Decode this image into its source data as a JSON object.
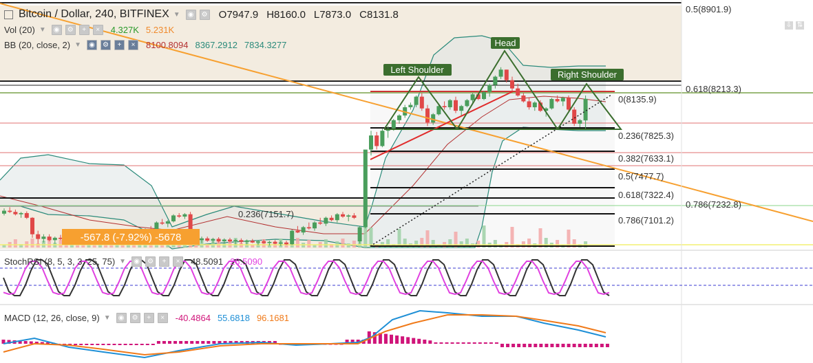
{
  "header": {
    "symbol": "Bitcoin / Dollar, 240, BITFINEX",
    "open": "O7947.9",
    "high": "H8160.0",
    "low": "L7873.0",
    "close": "C8131.8"
  },
  "indicators": {
    "vol": {
      "label": "Vol (20)",
      "v1": "4.327K",
      "v2": "5.231K",
      "c1": "#2b9a2b",
      "c2": "#f08a2c"
    },
    "bb": {
      "label": "BB (20, close, 2)",
      "v1": "8100.8094",
      "v2": "8367.2912",
      "v3": "7834.3277",
      "c1": "#b33030",
      "c2": "#2a8a7a",
      "c3": "#2a8a7a"
    },
    "stoch": {
      "label": "StochRSI (8, 5, 3, 3, 25, 75)",
      "v1": "48.5091",
      "v2": "26.5090",
      "c1": "#333333",
      "c2": "#e040e0"
    },
    "macd": {
      "label": "MACD (12, 26, close, 9)",
      "v1": "-40.4864",
      "v2": "55.6818",
      "v3": "96.1681",
      "c1": "#d0157a",
      "c2": "#1e8fd6",
      "c3": "#f07a1a"
    }
  },
  "annotations": {
    "left_shoulder": "Left Shoulder",
    "head": "Head",
    "right_shoulder": "Right Shoulder",
    "measure": "-567.8 (-7.92%) -5678"
  },
  "fib_labels": {
    "f1": "0.5(8901.9)",
    "f2": "0.618(8213.3)",
    "f3": "0(8135.9)",
    "f4": "0.236(7825.3)",
    "f5": "0.382(7633.1)",
    "f6": "0.5(7477.7)",
    "f7": "0.618(7322.4)",
    "f8": "0.786(7232.8)",
    "f9": "0.786(7101.2)",
    "f10": "0.236(7151.7)"
  },
  "colors": {
    "up": "#4a9e5c",
    "down": "#e04848",
    "trendline": "#f7a030",
    "pattern": "#3b6e2e"
  },
  "chart_data": {
    "type": "candlestick",
    "title": "Bitcoin / Dollar, 240, BITFINEX",
    "candles_ohlc": [
      [
        7155,
        7200,
        7140,
        7180
      ],
      [
        7180,
        7210,
        7160,
        7170
      ],
      [
        7170,
        7190,
        7140,
        7150
      ],
      [
        7150,
        7170,
        7120,
        7160
      ],
      [
        7160,
        7175,
        7110,
        7120
      ],
      [
        7120,
        7125,
        6950,
        6980
      ],
      [
        6980,
        7010,
        6900,
        6940
      ],
      [
        6940,
        6980,
        6910,
        6960
      ],
      [
        6960,
        6980,
        6920,
        6930
      ],
      [
        6930,
        6960,
        6900,
        6950
      ],
      [
        6950,
        6975,
        6930,
        6940
      ],
      [
        6940,
        6955,
        6910,
        6920
      ],
      [
        6920,
        6950,
        6905,
        6945
      ],
      [
        6945,
        6960,
        6920,
        6930
      ],
      [
        6930,
        6950,
        6910,
        6915
      ],
      [
        6915,
        6945,
        6900,
        6940
      ],
      [
        6940,
        6960,
        6925,
        6930
      ],
      [
        6930,
        6955,
        6915,
        6950
      ],
      [
        6950,
        6970,
        6935,
        6940
      ],
      [
        6940,
        6960,
        6920,
        6925
      ],
      [
        6925,
        6950,
        6910,
        6945
      ],
      [
        6945,
        6960,
        6925,
        6935
      ],
      [
        6935,
        6970,
        6930,
        6965
      ],
      [
        6965,
        6990,
        6950,
        6960
      ],
      [
        6960,
        6990,
        6945,
        6985
      ],
      [
        6985,
        7030,
        6975,
        7020
      ],
      [
        7020,
        7050,
        7000,
        7010
      ],
      [
        7010,
        7090,
        7000,
        7080
      ],
      [
        7080,
        7110,
        7060,
        7070
      ],
      [
        7070,
        7100,
        7040,
        7090
      ],
      [
        7090,
        7150,
        7080,
        7140
      ],
      [
        7140,
        7160,
        7120,
        7130
      ],
      [
        7130,
        7160,
        7110,
        7150
      ],
      [
        7150,
        7170,
        6990,
        7000
      ],
      [
        7000,
        7010,
        6900,
        6930
      ],
      [
        6930,
        6960,
        6905,
        6945
      ],
      [
        6945,
        6960,
        6915,
        6925
      ],
      [
        6925,
        6950,
        6905,
        6940
      ],
      [
        6940,
        6955,
        6910,
        6920
      ],
      [
        6920,
        6945,
        6900,
        6935
      ],
      [
        6935,
        6950,
        6910,
        6920
      ],
      [
        6920,
        6940,
        6895,
        6930
      ],
      [
        6930,
        6945,
        6900,
        6915
      ],
      [
        6915,
        6935,
        6895,
        6925
      ],
      [
        6925,
        6940,
        6905,
        6910
      ],
      [
        6910,
        6930,
        6890,
        6920
      ],
      [
        6920,
        6935,
        6900,
        6905
      ],
      [
        6905,
        6925,
        6885,
        6915
      ],
      [
        6915,
        6930,
        6895,
        6900
      ],
      [
        6900,
        6925,
        6880,
        6910
      ],
      [
        6910,
        6925,
        6890,
        6895
      ],
      [
        6895,
        7020,
        6890,
        7010
      ],
      [
        7010,
        7050,
        6990,
        6995
      ],
      [
        6995,
        7050,
        6975,
        7040
      ],
      [
        7040,
        7080,
        7020,
        7030
      ],
      [
        7030,
        7090,
        7010,
        7080
      ],
      [
        7080,
        7120,
        7060,
        7070
      ],
      [
        7070,
        7130,
        7050,
        7120
      ],
      [
        7120,
        7140,
        7090,
        7100
      ],
      [
        7100,
        7160,
        7080,
        7150
      ],
      [
        7150,
        7170,
        7120,
        7130
      ],
      [
        7130,
        7150,
        7090,
        7140
      ],
      [
        7140,
        7160,
        7110,
        7120
      ],
      [
        6920,
        7050,
        6900,
        7040
      ],
      [
        7040,
        7350,
        7030,
        7700
      ],
      [
        7700,
        7860,
        7650,
        7820
      ],
      [
        7820,
        7850,
        7700,
        7730
      ],
      [
        7730,
        7880,
        7720,
        7860
      ],
      [
        7860,
        7900,
        7800,
        7880
      ],
      [
        7880,
        7960,
        7860,
        7950
      ],
      [
        7950,
        8000,
        7920,
        7990
      ],
      [
        7990,
        8080,
        7970,
        8060
      ],
      [
        8060,
        8100,
        8040,
        8080
      ],
      [
        8080,
        8160,
        8060,
        8150
      ],
      [
        8150,
        8180,
        8030,
        8050
      ],
      [
        8050,
        8080,
        7900,
        7930
      ],
      [
        7930,
        8010,
        7910,
        8000
      ],
      [
        8000,
        8080,
        7990,
        8070
      ],
      [
        8070,
        8110,
        8040,
        8060
      ],
      [
        8060,
        8130,
        8040,
        8120
      ],
      [
        8120,
        8150,
        8010,
        8030
      ],
      [
        8030,
        8080,
        7990,
        8070
      ],
      [
        8070,
        8130,
        8060,
        8120
      ],
      [
        8120,
        8180,
        8100,
        8170
      ],
      [
        8170,
        8200,
        8120,
        8130
      ],
      [
        8130,
        8200,
        8120,
        8190
      ],
      [
        8190,
        8260,
        8150,
        8250
      ],
      [
        8250,
        8330,
        8220,
        8320
      ],
      [
        8320,
        8400,
        8300,
        8380
      ],
      [
        8380,
        8380,
        8270,
        8290
      ],
      [
        8290,
        8320,
        8200,
        8220
      ],
      [
        8220,
        8260,
        8150,
        8160
      ],
      [
        8160,
        8180,
        8100,
        8110
      ],
      [
        8110,
        8140,
        8040,
        8060
      ],
      [
        8060,
        8110,
        8030,
        8100
      ],
      [
        8100,
        8120,
        8020,
        8030
      ],
      [
        8030,
        8060,
        7980,
        8050
      ],
      [
        8050,
        8140,
        8040,
        8130
      ],
      [
        8130,
        8160,
        8100,
        8110
      ],
      [
        8110,
        8150,
        8070,
        8140
      ],
      [
        8140,
        8160,
        8030,
        8040
      ],
      [
        8040,
        8060,
        7900,
        7920
      ],
      [
        7920,
        7960,
        7890,
        7950
      ],
      [
        7947.9,
        8160,
        7873,
        8131.8
      ]
    ],
    "volume_note": "relative volume bars",
    "stoch_values": {
      "k": 48.5091,
      "d": 26.509
    },
    "macd_values": {
      "histogram": -40.4864,
      "macd": 55.6818,
      "signal": 96.1681
    },
    "fib_levels": [
      8901.9,
      8213.3,
      8135.9,
      7825.3,
      7633.1,
      7477.7,
      7322.4,
      7232.8,
      7101.2,
      7151.7
    ]
  }
}
